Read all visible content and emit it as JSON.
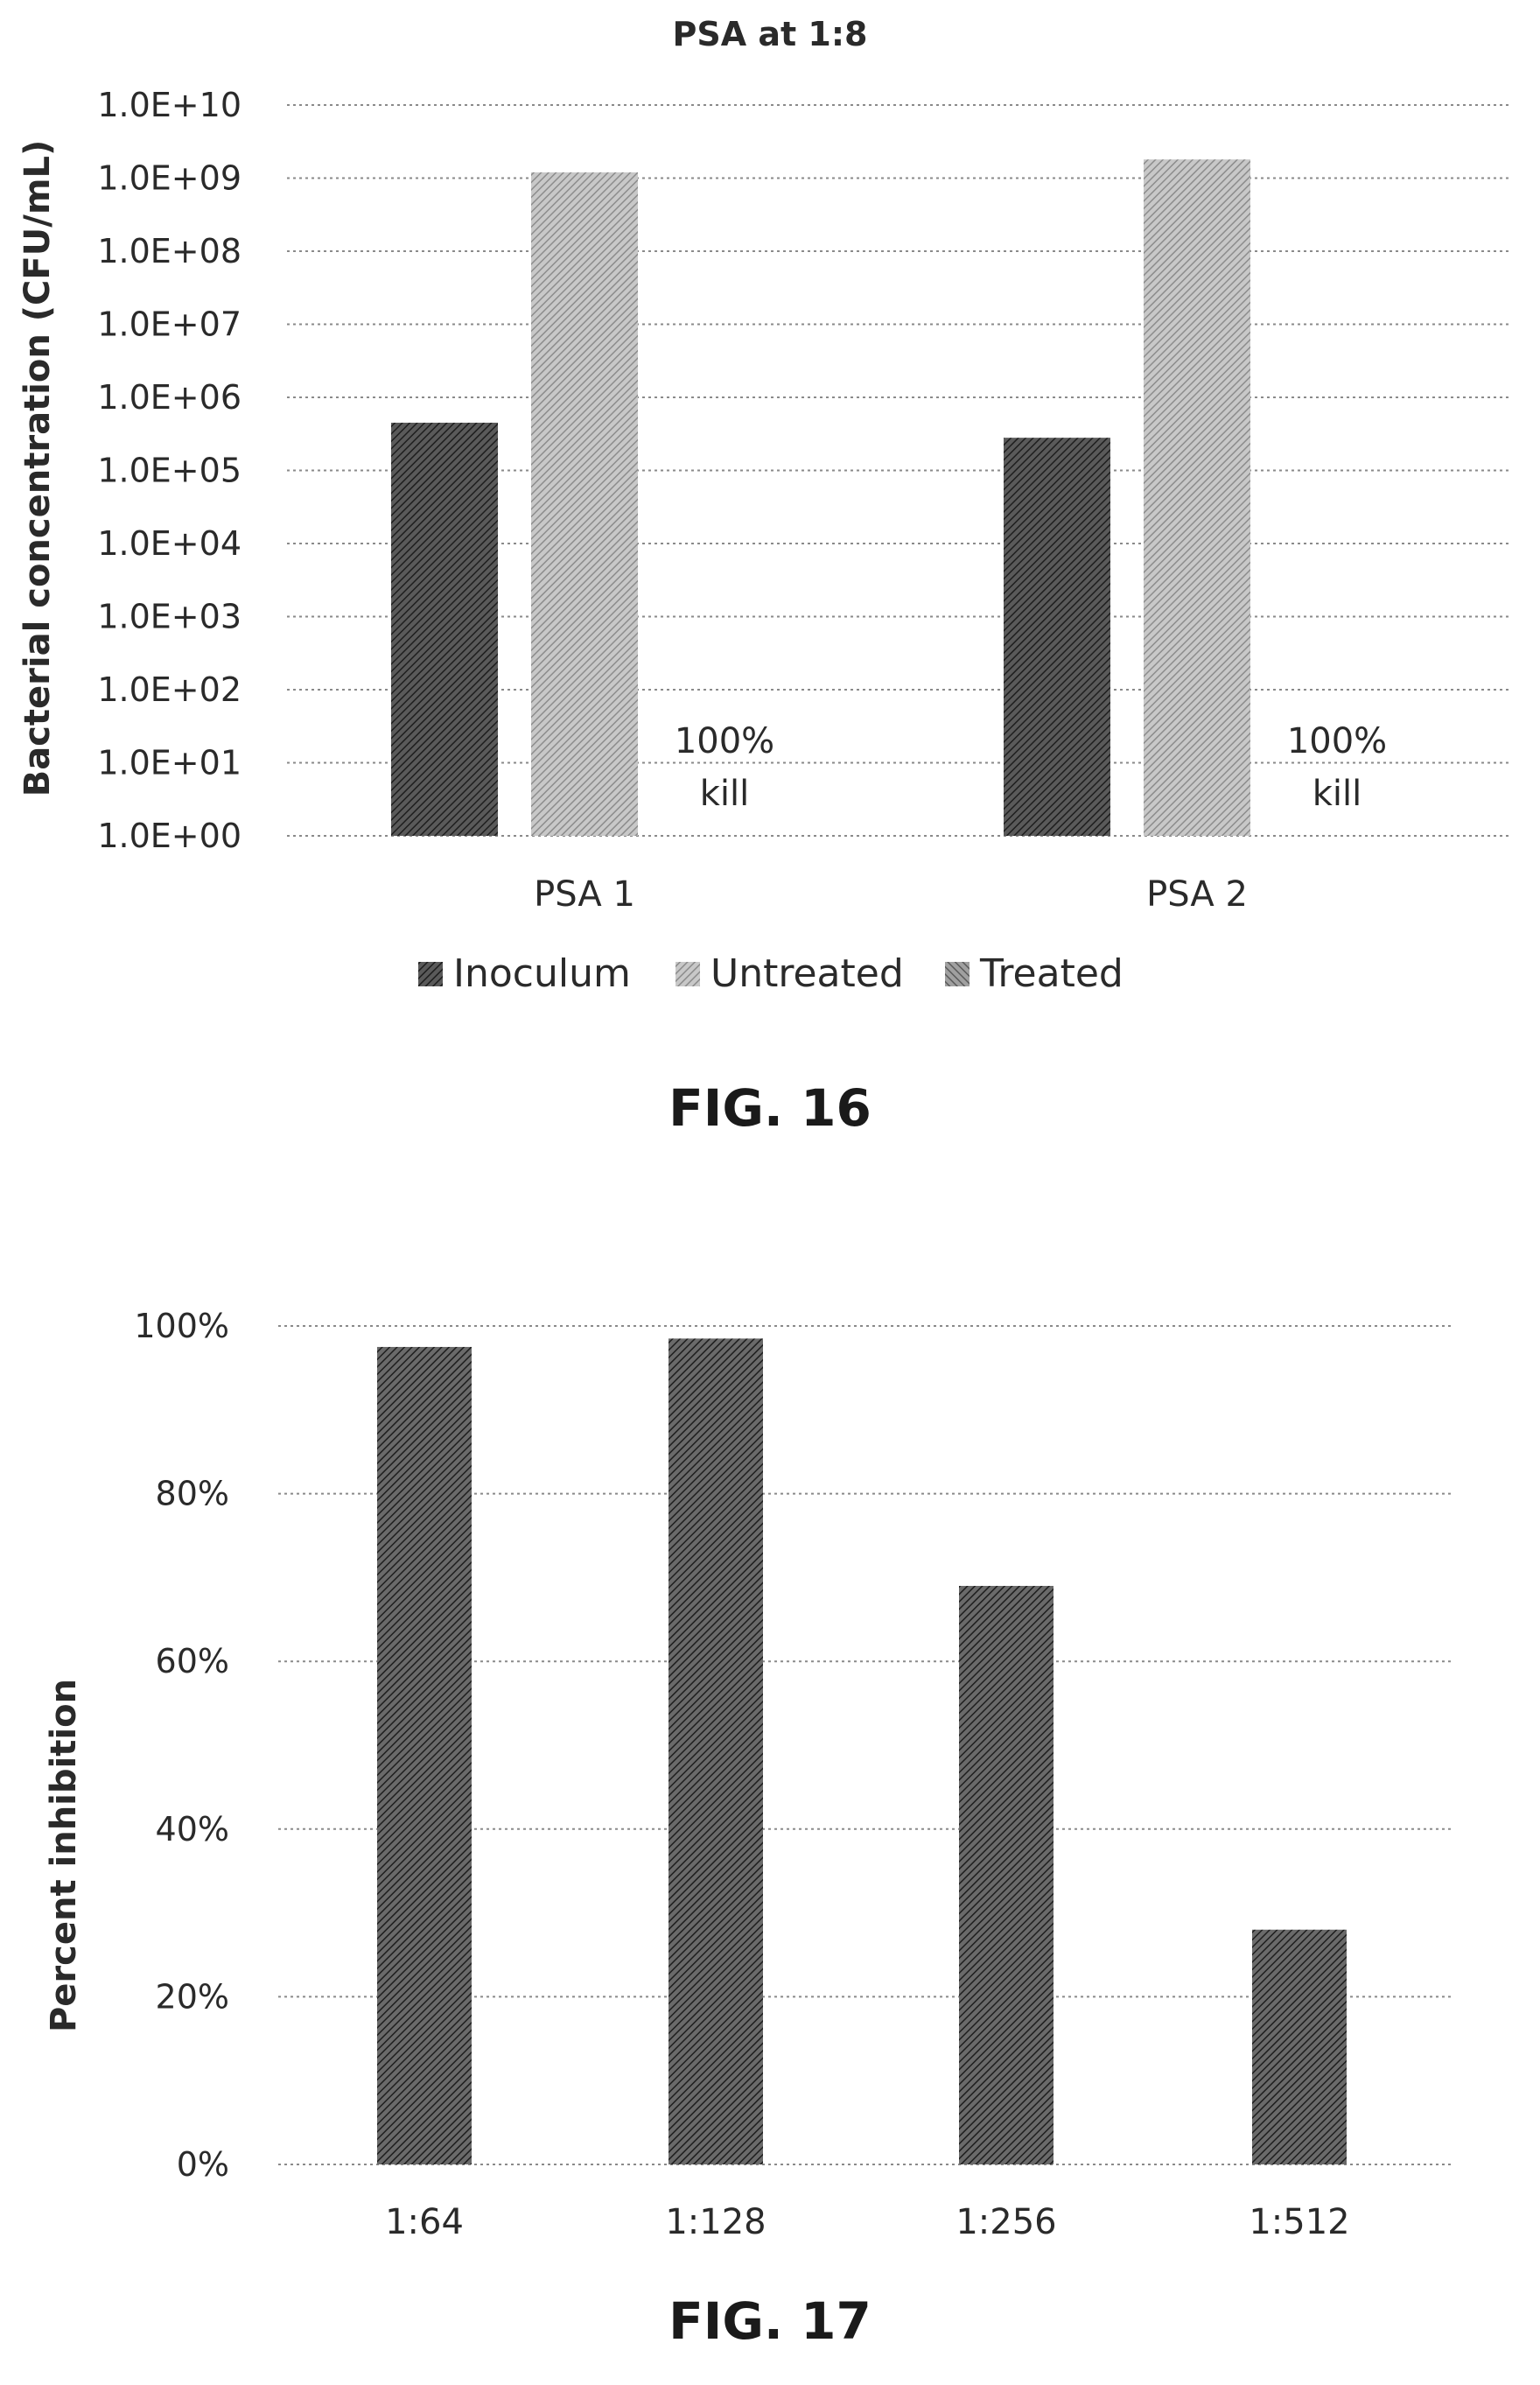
{
  "figures": [
    {
      "caption": "FIG. 16",
      "chart_data": {
        "type": "bar",
        "title": "PSA at 1:8",
        "xlabel": "",
        "ylabel": "Bacterial concentration (CFU/mL)",
        "yscale": "log",
        "ylim": [
          1,
          10000000000
        ],
        "yticks": [
          "1.0E+00",
          "1.0E+01",
          "1.0E+02",
          "1.0E+03",
          "1.0E+04",
          "1.0E+05",
          "1.0E+06",
          "1.0E+07",
          "1.0E+08",
          "1.0E+09",
          "1.0E+10"
        ],
        "categories": [
          "PSA 1",
          "PSA 2"
        ],
        "series": [
          {
            "name": "Inoculum",
            "values": [
              450000,
              280000
            ],
            "color": "#3a3a3a"
          },
          {
            "name": "Untreated",
            "values": [
              1200000000,
              1800000000
            ],
            "color": "#b0b0b0"
          },
          {
            "name": "Treated",
            "values": [
              0,
              0
            ],
            "color": "#7a7a7a"
          }
        ],
        "annotations": [
          {
            "category": "PSA 1",
            "series": "Treated",
            "lines": [
              "100%",
              "kill"
            ]
          },
          {
            "category": "PSA 2",
            "series": "Treated",
            "lines": [
              "100%",
              "kill"
            ]
          }
        ],
        "legend": "bottom",
        "grid": true
      }
    },
    {
      "caption": "FIG. 17",
      "chart_data": {
        "type": "bar",
        "title": "",
        "xlabel": "",
        "ylabel": "Percent inhibition",
        "yscale": "linear",
        "ylim": [
          0,
          100
        ],
        "yticks": [
          "0%",
          "20%",
          "40%",
          "60%",
          "80%",
          "100%"
        ],
        "categories": [
          "1:64",
          "1:128",
          "1:256",
          "1:512"
        ],
        "series": [
          {
            "values": [
              97.5,
              98.5,
              69,
              28
            ],
            "color": "#4a4a4a"
          }
        ],
        "legend": "none",
        "grid": true
      }
    }
  ]
}
